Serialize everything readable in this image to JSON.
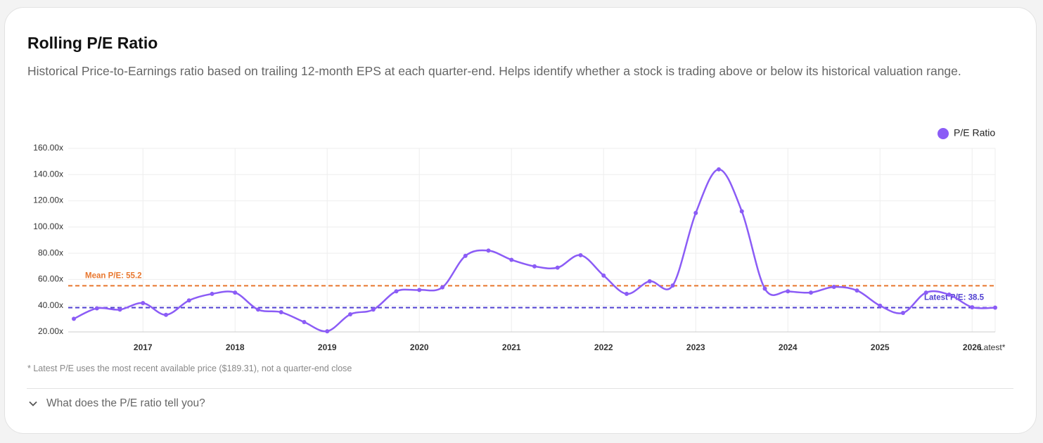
{
  "chart_data": {
    "type": "line",
    "title": "Rolling P/E Ratio",
    "subtitle": "Historical Price-to-Earnings ratio based on trailing 12-month EPS at each quarter-end. Helps identify whether a stock is trading above or below its historical valuation range.",
    "footnote": "* Latest P/E uses the most recent available price ($189.31), not a quarter-end close",
    "categories": [
      null,
      null,
      null,
      "2017",
      null,
      null,
      null,
      "2018",
      null,
      null,
      null,
      "2019",
      null,
      null,
      null,
      "2020",
      null,
      null,
      null,
      "2021",
      null,
      null,
      null,
      "2022",
      null,
      null,
      null,
      "2023",
      null,
      null,
      null,
      "2024",
      null,
      null,
      null,
      "2025",
      null,
      null,
      null,
      "2026",
      "Latest*"
    ],
    "series": [
      {
        "name": "P/E Ratio",
        "color": "#8b5cf6",
        "values": [
          30,
          38,
          37,
          42,
          33,
          44,
          49,
          50,
          37,
          35,
          27.5,
          20.5,
          33.4,
          37,
          51,
          52,
          54,
          78,
          82,
          75,
          70,
          69,
          78.5,
          63,
          49,
          58.6,
          55.4,
          110.7,
          144,
          112,
          53,
          51,
          50,
          54.3,
          51.6,
          40,
          34.5,
          50,
          48.4,
          38.8,
          38.5
        ]
      }
    ],
    "reference_lines": [
      {
        "value": 55.2,
        "label": "Mean P/E: 55.2",
        "color": "#e8772e"
      },
      {
        "value": 38.5,
        "label": "Latest P/E: 38.5",
        "color": "#4f3fd1"
      }
    ],
    "ylim": [
      20,
      160
    ],
    "yticks": [
      {
        "value": 20,
        "label": "20.00x"
      },
      {
        "value": 40,
        "label": "40.00x"
      },
      {
        "value": 60,
        "label": "60.00x"
      },
      {
        "value": 80,
        "label": "80.00x"
      },
      {
        "value": 100,
        "label": "100.00x"
      },
      {
        "value": 120,
        "label": "120.00x"
      },
      {
        "value": 140,
        "label": "140.00x"
      },
      {
        "value": 160,
        "label": "160.00x"
      }
    ],
    "grid": true,
    "legend": "top-right"
  },
  "faq": {
    "question": "What does the P/E ratio tell you?"
  }
}
